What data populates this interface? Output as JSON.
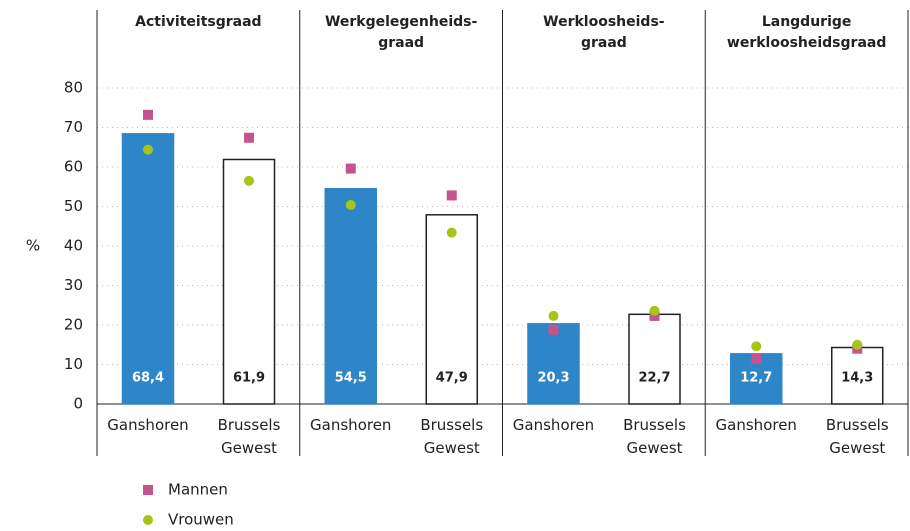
{
  "chart_data": {
    "type": "bar",
    "ylabel": "%",
    "ylim": [
      0,
      80
    ],
    "yticks": [
      0,
      10,
      20,
      30,
      40,
      50,
      60,
      70,
      80
    ],
    "grid": true,
    "categories": [
      "Ganshoren",
      "Brussels\nGewest"
    ],
    "bar_colors": [
      "#2e86c8",
      "#ffffff"
    ],
    "value_label_colors": [
      "#ffffff",
      "#222222"
    ],
    "panels": [
      {
        "title": "Activiteitsgraad",
        "values": [
          68.4,
          61.9
        ],
        "value_labels": [
          "68,4",
          "61,9"
        ]
      },
      {
        "title": "Werkgelegenheids-\ngraad",
        "values": [
          54.5,
          47.9
        ],
        "value_labels": [
          "54,5",
          "47,9"
        ]
      },
      {
        "title": "Werkloosheids-\ngraad",
        "values": [
          20.3,
          22.7
        ],
        "value_labels": [
          "20,3",
          "22,7"
        ]
      },
      {
        "title": "Langdurige\nwerkloosheidsgraad",
        "values": [
          12.7,
          14.3
        ],
        "value_labels": [
          "12,7",
          "14,3"
        ]
      }
    ],
    "series": [
      {
        "name": "Mannen",
        "color": "#c4538e",
        "marker": "square",
        "values": [
          [
            73.2,
            67.4
          ],
          [
            59.6,
            52.8
          ],
          [
            18.8,
            22.3
          ],
          [
            11.4,
            14.0
          ]
        ]
      },
      {
        "name": "Vrouwen",
        "color": "#a6c41a",
        "marker": "circle",
        "values": [
          [
            64.4,
            56.5
          ],
          [
            50.4,
            43.4
          ],
          [
            22.3,
            23.6
          ],
          [
            14.6,
            15.0
          ]
        ]
      }
    ]
  }
}
